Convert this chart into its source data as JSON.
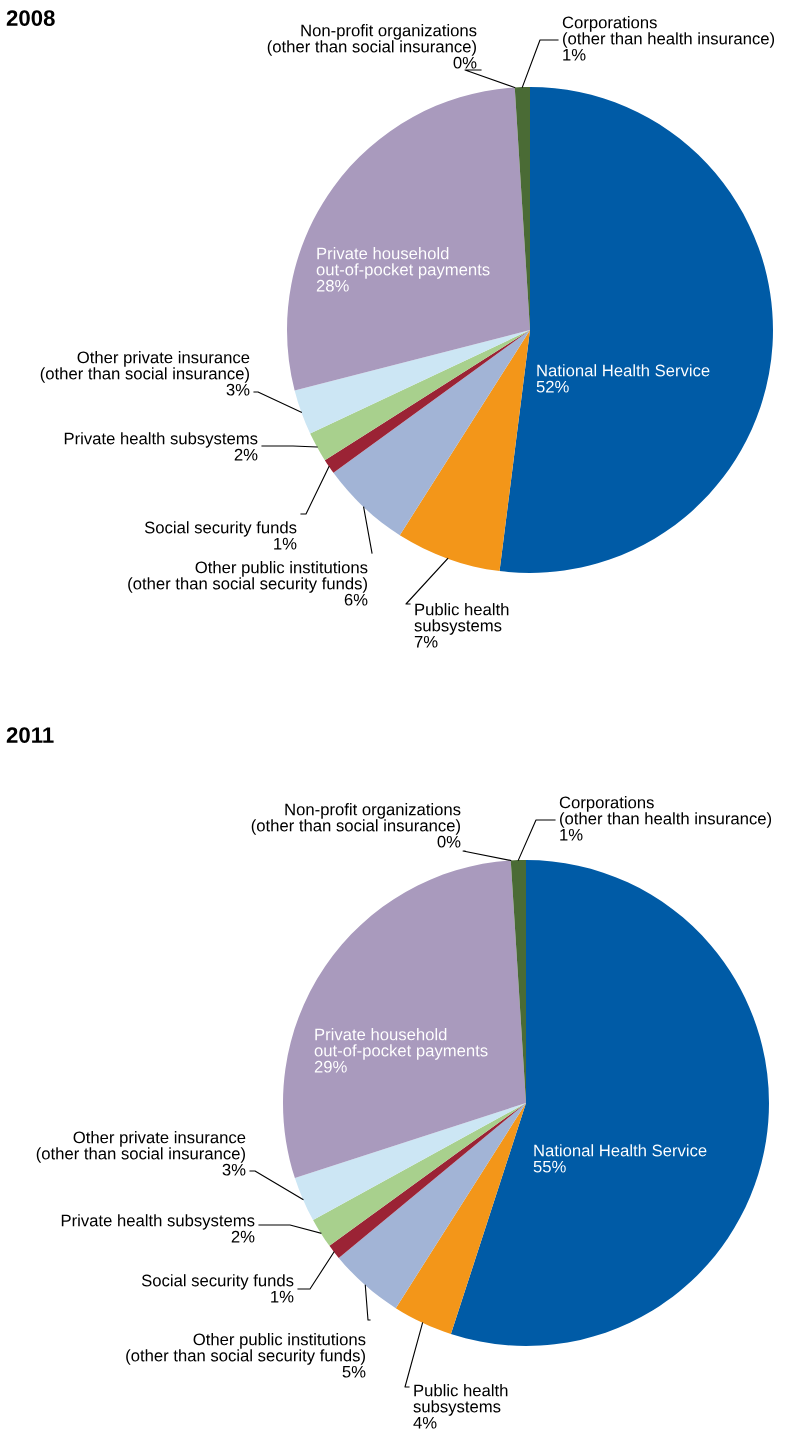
{
  "chart_data": [
    {
      "type": "pie",
      "title": "2008",
      "categories": [
        "National Health Service",
        "Public health\nsubsystems",
        "Other public institutions\n(other than social security funds)",
        "Social security funds",
        "Private health subsystems",
        "Other private insurance\n(other than social insurance)",
        "Private household\nout-of-pocket payments",
        "Non-profit organizations\n(other than social insurance)",
        "Corporations\n(other than health insurance)"
      ],
      "values": [
        52,
        7,
        6,
        1,
        2,
        3,
        28,
        0,
        1
      ],
      "value_labels": [
        "52%",
        "7%",
        "6%",
        "1%",
        "2%",
        "3%",
        "28%",
        "0%",
        "1%"
      ],
      "colors": [
        "#005ba6",
        "#f39619",
        "#a2b4d6",
        "#9b2335",
        "#a8d08d",
        "#cce6f4",
        "#a99abd",
        "#3a3a3a",
        "#4a6b35"
      ]
    },
    {
      "type": "pie",
      "title": "2011",
      "categories": [
        "National Health Service",
        "Public health\nsubsystems",
        "Other public institutions\n(other than social security funds)",
        "Social security funds",
        "Private health subsystems",
        "Other private insurance\n(other than social insurance)",
        "Private household\nout-of-pocket payments",
        "Non-profit organizations\n(other than social insurance)",
        "Corporations\n(other than health insurance)"
      ],
      "values": [
        55,
        4,
        5,
        1,
        2,
        3,
        29,
        0,
        1
      ],
      "value_labels": [
        "55%",
        "4%",
        "5%",
        "1%",
        "2%",
        "3%",
        "29%",
        "0%",
        "1%"
      ],
      "colors": [
        "#005ba6",
        "#f39619",
        "#a2b4d6",
        "#9b2335",
        "#a8d08d",
        "#cce6f4",
        "#a99abd",
        "#3a3a3a",
        "#4a6b35"
      ]
    }
  ]
}
